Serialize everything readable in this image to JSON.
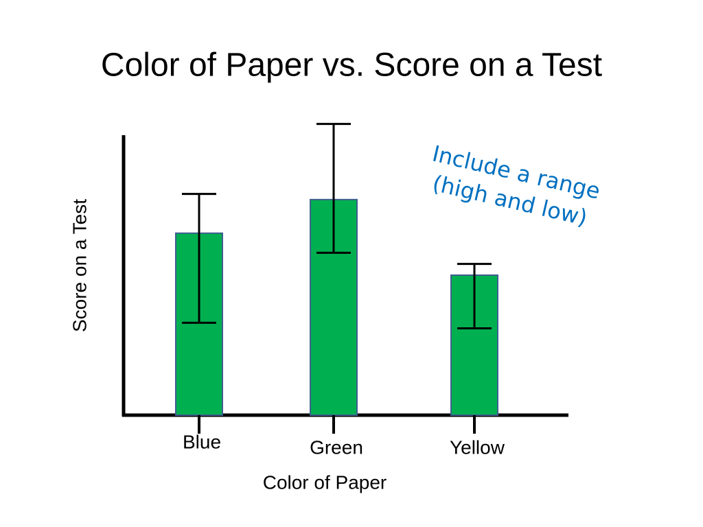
{
  "chart_data": {
    "type": "bar",
    "title": "Color of Paper vs. Score on a Test",
    "x_label": "Color of Paper",
    "y_label": "Score on a Test",
    "annotation": [
      "Include a range",
      "(high and low)"
    ],
    "categories": [
      "Blue",
      "Green",
      "Yellow"
    ],
    "values": [
      65,
      77,
      50
    ],
    "high": [
      79,
      104,
      54
    ],
    "low": [
      33,
      58,
      31
    ],
    "color": "#00b050",
    "ylim": [
      0,
      100
    ]
  }
}
